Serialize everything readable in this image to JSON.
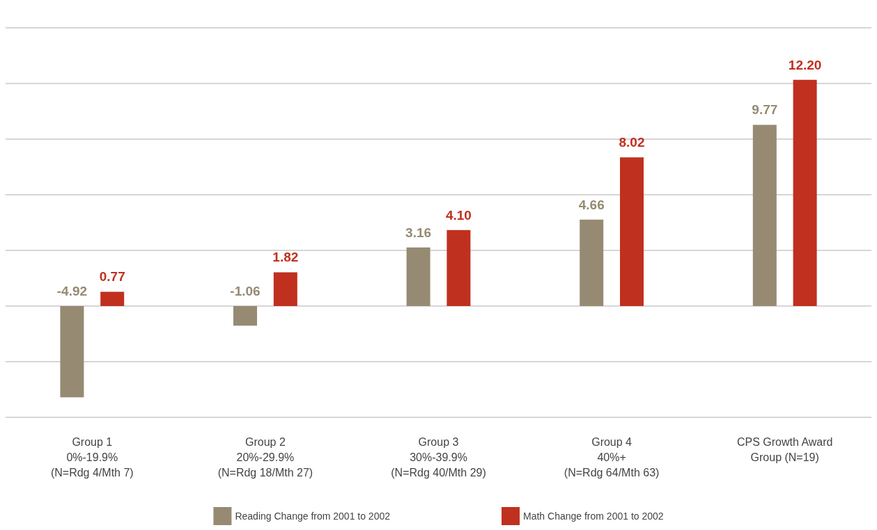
{
  "chart_data": {
    "type": "bar",
    "categories": [
      "Group 1\n0%-19.9%\n(N=Rdg 4/Mth 7)",
      "Group 2\n20%-29.9%\n(N=Rdg 18/Mth 27)",
      "Group 3\n30%-39.9%\n(N=Rdg 40/Mth 29)",
      "Group 4\n40%+\n(N=Rdg 64/Mth 63)",
      "CPS Growth Award\nGroup (N=19)"
    ],
    "series": [
      {
        "name": "Reading Change from 2001 to 2002",
        "color": "#968a72",
        "values": [
          -4.92,
          -1.06,
          3.16,
          4.66,
          9.77
        ],
        "value_labels": [
          "-4.92",
          "-1.06",
          "3.16",
          "4.66",
          "9.77"
        ]
      },
      {
        "name": "Math Change from 2001 to 2002",
        "color": "#c0301f",
        "values": [
          0.77,
          1.82,
          4.1,
          8.02,
          12.2
        ],
        "value_labels": [
          "0.77",
          "1.82",
          "4.10",
          "8.02",
          "12.20"
        ]
      }
    ],
    "tick_labels": "x",
    "grid": "y",
    "legend": "bottom"
  }
}
